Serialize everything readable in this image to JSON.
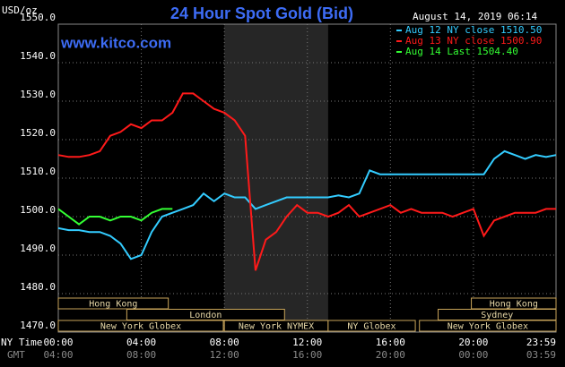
{
  "header": {
    "unit": "USD/oz",
    "site": "www.kitco.com",
    "timestamp": "August 14, 2019 06:14",
    "ny_time_label": "NY Time",
    "gmt_label": "GMT"
  },
  "chart_data": {
    "type": "line",
    "title": "24 Hour Spot Gold (Bid)",
    "x": [
      0,
      0.5,
      1,
      1.5,
      2,
      2.5,
      3,
      3.5,
      4,
      4.5,
      5,
      5.5,
      6,
      6.5,
      7,
      7.5,
      8,
      8.5,
      9,
      9.5,
      10,
      10.5,
      11,
      11.5,
      12,
      12.5,
      13,
      13.5,
      14,
      14.5,
      15,
      15.5,
      16,
      16.5,
      17,
      17.5,
      18,
      18.5,
      19,
      19.5,
      20,
      20.5,
      21,
      21.5,
      22,
      22.5,
      23,
      23.5,
      23.98
    ],
    "series": [
      {
        "name": "Aug 12 NY close 1510.50",
        "color": "#33ccff",
        "values": [
          1497,
          1496.5,
          1496.5,
          1496,
          1496,
          1495,
          1493,
          1489,
          1490,
          1496,
          1500,
          1501,
          1502,
          1503,
          1506,
          1504,
          1506,
          1505,
          1505,
          1502,
          1503,
          1504,
          1505,
          1505,
          1505,
          1505,
          1505,
          1505.5,
          1505,
          1506,
          1512,
          1511,
          1511,
          1511,
          1511,
          1511,
          1511,
          1511,
          1511,
          1511,
          1511,
          1511,
          1515,
          1517,
          1516,
          1515,
          1516,
          1515.5,
          1516
        ]
      },
      {
        "name": "Aug 13 NY close 1500.90",
        "color": "#ff1a1a",
        "values": [
          1516,
          1515.5,
          1515.5,
          1516,
          1517,
          1521,
          1522,
          1524,
          1523,
          1525,
          1525,
          1527,
          1532,
          1532,
          1530,
          1528,
          1527,
          1525,
          1521,
          1486,
          1494,
          1496,
          1500,
          1503,
          1501,
          1501,
          1500,
          1501,
          1503,
          1500,
          1501,
          1502,
          1503,
          1501,
          1502,
          1501,
          1501,
          1501,
          1500,
          1501,
          1502,
          1495,
          1499,
          1500,
          1501,
          1501,
          1501,
          1502,
          1502
        ]
      },
      {
        "name": "Aug 14 Last 1504.40",
        "color": "#33ff33",
        "values": [
          1502,
          1500,
          1498,
          1500,
          1500,
          1499,
          1500,
          1500,
          1499,
          1501,
          1502,
          1502,
          null,
          null,
          null,
          null,
          null,
          null,
          null,
          null,
          null,
          null,
          null,
          null,
          null,
          null,
          null,
          null,
          null,
          null,
          null,
          null,
          null,
          null,
          null,
          null,
          null,
          null,
          null,
          null,
          null,
          null,
          null,
          null,
          null,
          null,
          null,
          null,
          null
        ]
      }
    ],
    "ylim": [
      1470,
      1550
    ],
    "yticks": [
      {
        "value": 1470,
        "label": "1470.0"
      },
      {
        "value": 1480,
        "label": "1480.0"
      },
      {
        "value": 1490,
        "label": "1490.0"
      },
      {
        "value": 1500,
        "label": "1500.0"
      },
      {
        "value": 1510,
        "label": "1510.0"
      },
      {
        "value": 1520,
        "label": "1520.0"
      },
      {
        "value": 1530,
        "label": "1530.0"
      },
      {
        "value": 1540,
        "label": "1540.0"
      },
      {
        "value": 1550,
        "label": "1550.0"
      }
    ],
    "xlim": [
      0,
      23.98
    ],
    "xticks": [
      {
        "value": 0,
        "label": "00:00"
      },
      {
        "value": 4,
        "label": "04:00"
      },
      {
        "value": 8,
        "label": "08:00"
      },
      {
        "value": 12,
        "label": "12:00"
      },
      {
        "value": 16,
        "label": "16:00"
      },
      {
        "value": 20,
        "label": "20:00"
      },
      {
        "value": 23.98,
        "label": "23:59"
      }
    ],
    "gmt_ticks": [
      "04:00",
      "08:00",
      "12:00",
      "16:00",
      "20:00",
      "00:00",
      "03:59"
    ],
    "grid": true,
    "sessions": [
      [
        {
          "label": "Hong Kong",
          "start": 0,
          "end": 5.3
        },
        {
          "label": "Hong Kong",
          "start": 19.9,
          "end": 23.98
        }
      ],
      [
        {
          "label": "London",
          "start": 3.3,
          "end": 10.9
        },
        {
          "label": "Sydney",
          "start": 18.3,
          "end": 23.98
        }
      ],
      [
        {
          "label": "New York Globex",
          "start": 0,
          "end": 7.95
        },
        {
          "label": "New York NYMEX",
          "start": 8,
          "end": 13,
          "shaded": true
        },
        {
          "label": "NY Globex",
          "start": 13,
          "end": 17.2
        },
        {
          "label": "New York Globex",
          "start": 17.4,
          "end": 23.98
        }
      ]
    ]
  }
}
